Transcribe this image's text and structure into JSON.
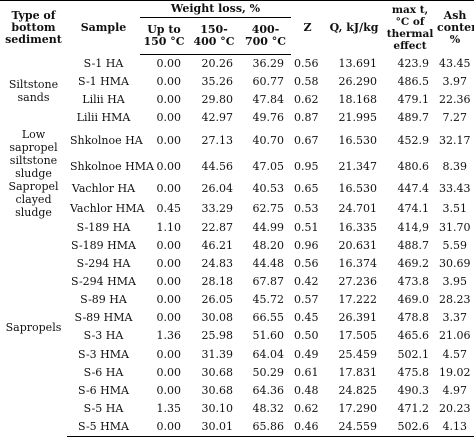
{
  "headers": {
    "type": "Type of bottom sediment",
    "sample": "Sample",
    "weight_loss": "Weight loss, %",
    "up_to": "Up to 150 °C",
    "range1": "150-400 °C",
    "range2": "400-700 °C",
    "z": "Z",
    "q": "Q, kJ/kg",
    "maxt": "max t, °C of thermal effect",
    "ash": "Ash content, %"
  },
  "groups": [
    {
      "label": "Siltstone sands",
      "rows": [
        [
          "S-1 HA",
          "0.00",
          "20.26",
          "36.29",
          "0.56",
          "13.691",
          "423.9",
          "43.45"
        ],
        [
          "S-1 HMA",
          "0.00",
          "35.26",
          "60.77",
          "0.58",
          "26.290",
          "486.5",
          "3.97"
        ],
        [
          "Lilii HA",
          "0.00",
          "29.80",
          "47.84",
          "0.62",
          "18.168",
          "479.1",
          "22.36"
        ],
        [
          "Lilii HMA",
          "0.00",
          "42.97",
          "49.76",
          "0.87",
          "21.995",
          "489.7",
          "7.27"
        ]
      ]
    },
    {
      "label": "Low sapropel siltstone sludge",
      "rows": [
        [
          "Shkolnoe HA",
          "0.00",
          "27.13",
          "40.70",
          "0.67",
          "16.530",
          "452.9",
          "32.17"
        ],
        [
          "Shkolnoe HMA",
          "0.00",
          "44.56",
          "47.05",
          "0.95",
          "21.347",
          "480.6",
          "8.39"
        ]
      ]
    },
    {
      "label": "Sapropel clayed sludge",
      "rows": [
        [
          "Vachlor HA",
          "0.00",
          "26.04",
          "40.53",
          "0.65",
          "16.530",
          "447.4",
          "33.43"
        ],
        [
          "Vachlor HMA",
          "0.45",
          "33.29",
          "62.75",
          "0.53",
          "24.701",
          "474.1",
          "3.51"
        ]
      ]
    },
    {
      "label": "Sapropels",
      "rows": [
        [
          "S-189 HA",
          "1.10",
          "22.87",
          "44.99",
          "0.51",
          "16.335",
          "414,9",
          "31.70"
        ],
        [
          "S-189 HMA",
          "0.00",
          "46.21",
          "48.20",
          "0.96",
          "20.631",
          "488.7",
          "5.59"
        ],
        [
          "S-294 HA",
          "0.00",
          "24.83",
          "44.48",
          "0.56",
          "16.374",
          "469.2",
          "30.69"
        ],
        [
          "S-294 HMA",
          "0.00",
          "28.18",
          "67.87",
          "0.42",
          "27.236",
          "473.8",
          "3.95"
        ],
        [
          "S-89 HA",
          "0.00",
          "26.05",
          "45.72",
          "0.57",
          "17.222",
          "469.0",
          "28.23"
        ],
        [
          "S-89 HMA",
          "0.00",
          "30.08",
          "66.55",
          "0.45",
          "26.391",
          "478.8",
          "3.37"
        ],
        [
          "S-3 HA",
          "1.36",
          "25.98",
          "51.60",
          "0.50",
          "17.505",
          "465.6",
          "21.06"
        ],
        [
          "S-3 HMA",
          "0.00",
          "31.39",
          "64.04",
          "0.49",
          "25.459",
          "502.1",
          "4.57"
        ],
        [
          "S-6 HA",
          "0.00",
          "30.68",
          "50.29",
          "0.61",
          "17.831",
          "475.8",
          "19.02"
        ],
        [
          "S-6 HMA",
          "0.00",
          "30.68",
          "64.36",
          "0.48",
          "24.825",
          "490.3",
          "4.97"
        ],
        [
          "S-5 HA",
          "1.35",
          "30.10",
          "48.32",
          "0.62",
          "17.290",
          "471.2",
          "20.23"
        ],
        [
          "S-5 HMA",
          "0.00",
          "30.01",
          "65.86",
          "0.46",
          "24.559",
          "502.6",
          "4.13"
        ]
      ]
    }
  ]
}
